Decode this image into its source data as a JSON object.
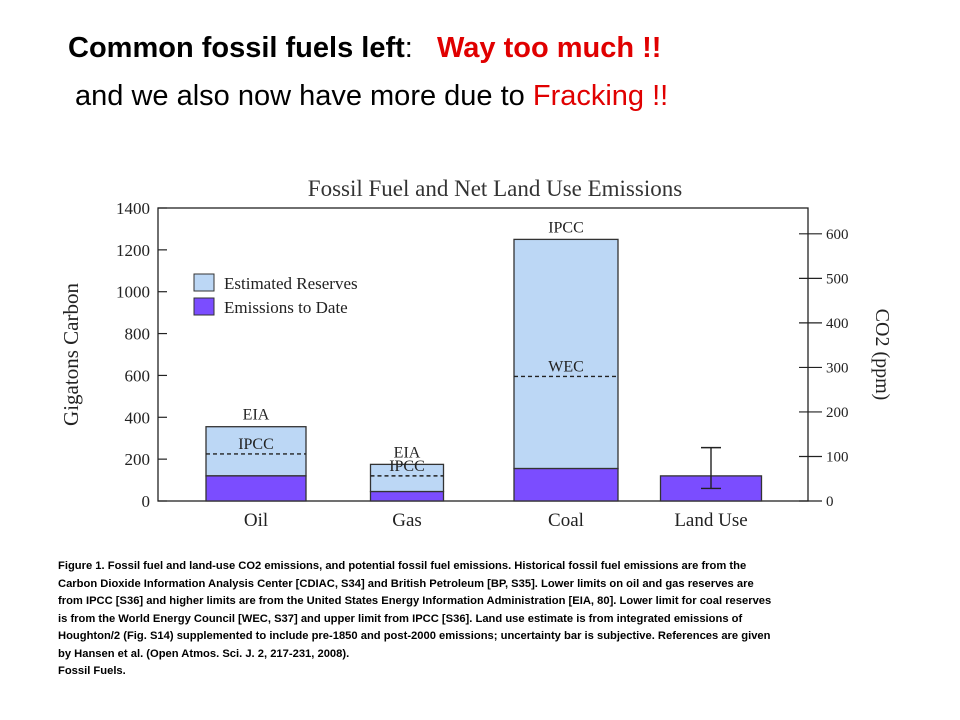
{
  "slide": {
    "title_bold": "Common fossil fuels left",
    "title_colon": ":",
    "title_emphasis": "Way too much !!",
    "subtitle_plain": "and we also now have more due to",
    "subtitle_emphasis": "Fracking !!",
    "caption": "Figure 1. Fossil fuel and land-use CO2 emissions, and potential fossil fuel emissions. Historical fossil fuel emissions are from the Carbon Dioxide Information Analysis Center [CDIAC, S34] and British Petroleum [BP, S35]. Lower limits on oil and gas reserves are from IPCC [S36] and higher limits are from the United States Energy Information Administration [EIA, 80]. Lower limit for coal reserves is from the World Energy Council [WEC, S37] and upper limit from IPCC [S36]. Land use estimate is from integrated emissions of Houghton/2 (Fig. S14) supplemented to include pre-1850 and post-2000 emissions; uncertainty bar is subjective. References are given by Hansen et al. (Open Atmos. Sci. J. 2, 217-231, 2008).",
    "caption_footer": "Fossil Fuels."
  },
  "chart_data": {
    "type": "bar",
    "stacked": true,
    "title": "Fossil Fuel and Net Land Use Emissions",
    "ylabel": "Gigatons Carbon",
    "y2label": "CO2 (ppm)",
    "ylim": [
      0,
      1400
    ],
    "yticks": [
      0,
      200,
      400,
      600,
      800,
      1000,
      1200,
      1400
    ],
    "y2lim": [
      0,
      658
    ],
    "y2ticks": [
      0,
      100,
      200,
      300,
      400,
      500,
      600
    ],
    "categories": [
      "Oil",
      "Gas",
      "Coal",
      "Land Use"
    ],
    "legend_position": "upper-left",
    "series": [
      {
        "name": "Emissions to Date",
        "color": "#7b4dff",
        "values": [
          120,
          45,
          155,
          120
        ]
      },
      {
        "name": "Estimated Reserves",
        "color": "#bcd7f5",
        "values": [
          235,
          130,
          1095,
          0
        ]
      }
    ],
    "annotations": [
      {
        "category": "Oil",
        "value": 355,
        "label": "EIA",
        "kind": "top"
      },
      {
        "category": "Oil",
        "value": 225,
        "label": "IPCC",
        "kind": "dashed"
      },
      {
        "category": "Gas",
        "value": 175,
        "label": "EIA",
        "kind": "top"
      },
      {
        "category": "Gas",
        "value": 120,
        "label": "IPCC",
        "kind": "dashed"
      },
      {
        "category": "Coal",
        "value": 1250,
        "label": "IPCC",
        "kind": "top"
      },
      {
        "category": "Coal",
        "value": 595,
        "label": "WEC",
        "kind": "dashed"
      }
    ],
    "error_bars": [
      {
        "category": "Land Use",
        "low": 60,
        "high": 255
      }
    ],
    "colors": {
      "emissions": "#7b4dff",
      "reserves": "#bcd7f5",
      "title_red": "#e00000"
    }
  }
}
